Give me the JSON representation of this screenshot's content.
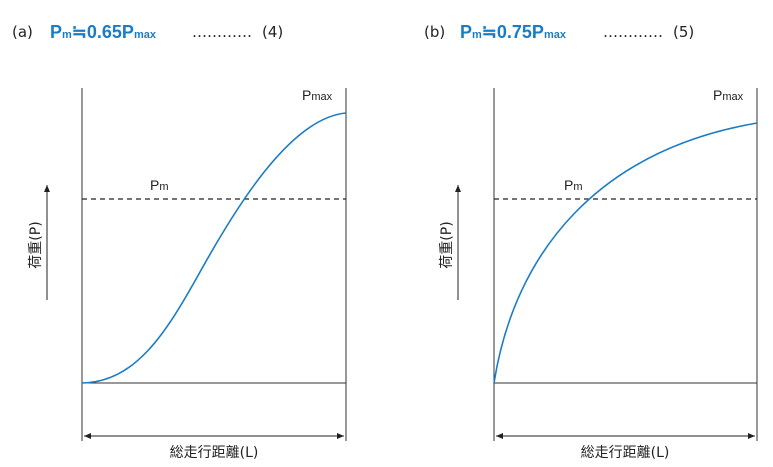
{
  "panels": [
    {
      "label": "(a)",
      "formula": {
        "p": "P",
        "p_sub": "m",
        "rest": "≒0.65P",
        "rest_sub": "max"
      },
      "leader": "…………",
      "equation_number": "(4)",
      "pm_label": {
        "p": "P",
        "sub": "m"
      },
      "pmax_label": {
        "p": "P",
        "sub": "max"
      },
      "y_axis_label": "荷重(P)",
      "x_axis_label": "総走行距離(L)"
    },
    {
      "label": "(b)",
      "formula": {
        "p": "P",
        "p_sub": "m",
        "rest": "≒0.75P",
        "rest_sub": "max"
      },
      "leader": "…………",
      "equation_number": "(5)",
      "pm_label": {
        "p": "P",
        "sub": "m"
      },
      "pmax_label": {
        "p": "P",
        "sub": "max"
      },
      "y_axis_label": "荷重(P)",
      "x_axis_label": "総走行距離(L)"
    }
  ]
}
